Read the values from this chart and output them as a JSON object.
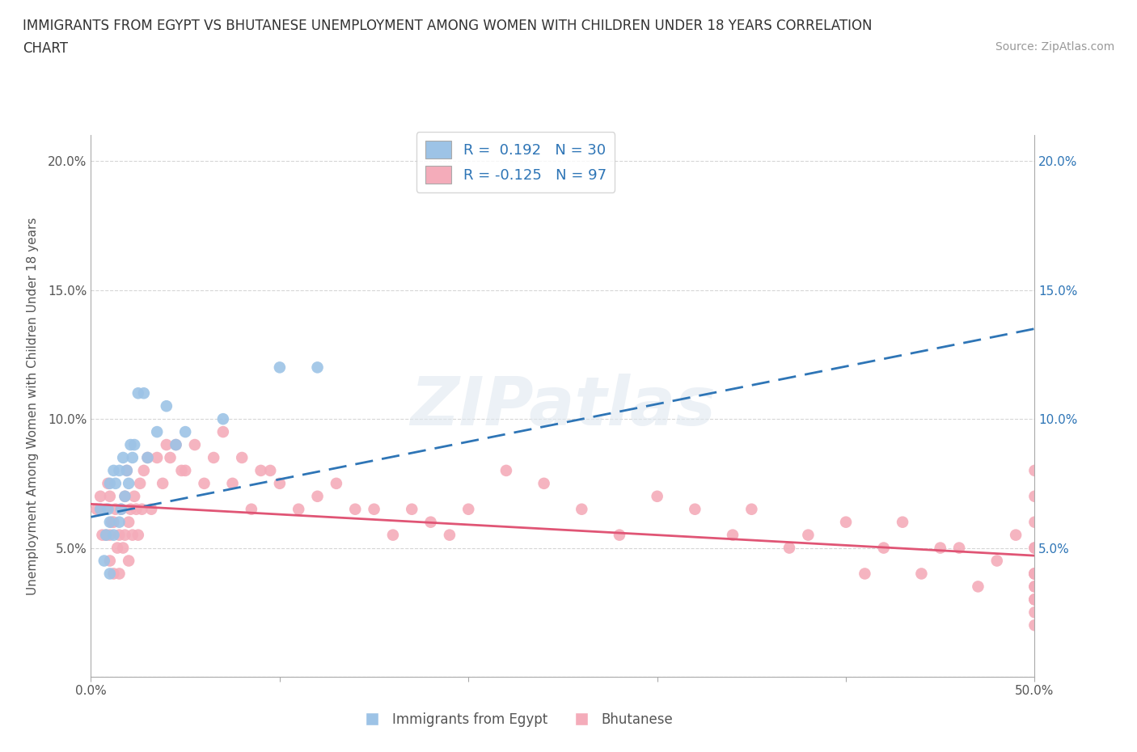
{
  "title_line1": "IMMIGRANTS FROM EGYPT VS BHUTANESE UNEMPLOYMENT AMONG WOMEN WITH CHILDREN UNDER 18 YEARS CORRELATION",
  "title_line2": "CHART",
  "source": "Source: ZipAtlas.com",
  "ylabel": "Unemployment Among Women with Children Under 18 years",
  "xlabel": "",
  "xlim": [
    0.0,
    0.5
  ],
  "ylim": [
    0.0,
    0.21
  ],
  "xticks": [
    0.0,
    0.1,
    0.2,
    0.3,
    0.4,
    0.5
  ],
  "xticklabels": [
    "0.0%",
    "",
    "",
    "",
    "",
    "50.0%"
  ],
  "yticks": [
    0.0,
    0.05,
    0.1,
    0.15,
    0.2
  ],
  "yticklabels": [
    "",
    "5.0%",
    "10.0%",
    "15.0%",
    "20.0%"
  ],
  "blue_color": "#9DC3E6",
  "pink_color": "#F4ACBA",
  "blue_line_color": "#2E75B6",
  "pink_line_color": "#E05575",
  "legend_r1": "R =  0.192   N = 30",
  "legend_r2": "R = -0.125   N = 97",
  "legend_label1": "Immigrants from Egypt",
  "legend_label2": "Bhutanese",
  "watermark": "ZIPatlas",
  "background_color": "#ffffff",
  "grid_color": "#cccccc",
  "blue_scatter_x": [
    0.005,
    0.007,
    0.008,
    0.009,
    0.01,
    0.01,
    0.01,
    0.012,
    0.012,
    0.013,
    0.015,
    0.015,
    0.016,
    0.017,
    0.018,
    0.019,
    0.02,
    0.021,
    0.022,
    0.023,
    0.025,
    0.028,
    0.03,
    0.035,
    0.04,
    0.045,
    0.05,
    0.07,
    0.1,
    0.12
  ],
  "blue_scatter_y": [
    0.065,
    0.045,
    0.055,
    0.065,
    0.04,
    0.06,
    0.075,
    0.055,
    0.08,
    0.075,
    0.06,
    0.08,
    0.065,
    0.085,
    0.07,
    0.08,
    0.075,
    0.09,
    0.085,
    0.09,
    0.11,
    0.11,
    0.085,
    0.095,
    0.105,
    0.09,
    0.095,
    0.1,
    0.12,
    0.12
  ],
  "pink_scatter_x": [
    0.003,
    0.005,
    0.006,
    0.008,
    0.008,
    0.009,
    0.01,
    0.01,
    0.01,
    0.011,
    0.012,
    0.012,
    0.013,
    0.014,
    0.015,
    0.015,
    0.016,
    0.017,
    0.018,
    0.018,
    0.019,
    0.02,
    0.02,
    0.021,
    0.022,
    0.023,
    0.024,
    0.025,
    0.026,
    0.027,
    0.028,
    0.03,
    0.032,
    0.035,
    0.038,
    0.04,
    0.042,
    0.045,
    0.048,
    0.05,
    0.055,
    0.06,
    0.065,
    0.07,
    0.075,
    0.08,
    0.085,
    0.09,
    0.095,
    0.1,
    0.11,
    0.12,
    0.13,
    0.14,
    0.15,
    0.16,
    0.17,
    0.18,
    0.19,
    0.2,
    0.22,
    0.24,
    0.26,
    0.28,
    0.3,
    0.32,
    0.34,
    0.35,
    0.37,
    0.38,
    0.4,
    0.41,
    0.42,
    0.43,
    0.44,
    0.45,
    0.46,
    0.47,
    0.48,
    0.49,
    0.5,
    0.5,
    0.5,
    0.5,
    0.5,
    0.5,
    0.5,
    0.5,
    0.5,
    0.5,
    0.5,
    0.5,
    0.5,
    0.5,
    0.5,
    0.5,
    0.5
  ],
  "pink_scatter_y": [
    0.065,
    0.07,
    0.055,
    0.055,
    0.065,
    0.075,
    0.045,
    0.055,
    0.07,
    0.06,
    0.04,
    0.06,
    0.065,
    0.05,
    0.04,
    0.055,
    0.065,
    0.05,
    0.055,
    0.07,
    0.08,
    0.045,
    0.06,
    0.065,
    0.055,
    0.07,
    0.065,
    0.055,
    0.075,
    0.065,
    0.08,
    0.085,
    0.065,
    0.085,
    0.075,
    0.09,
    0.085,
    0.09,
    0.08,
    0.08,
    0.09,
    0.075,
    0.085,
    0.095,
    0.075,
    0.085,
    0.065,
    0.08,
    0.08,
    0.075,
    0.065,
    0.07,
    0.075,
    0.065,
    0.065,
    0.055,
    0.065,
    0.06,
    0.055,
    0.065,
    0.08,
    0.075,
    0.065,
    0.055,
    0.07,
    0.065,
    0.055,
    0.065,
    0.05,
    0.055,
    0.06,
    0.04,
    0.05,
    0.06,
    0.04,
    0.05,
    0.05,
    0.035,
    0.045,
    0.055,
    0.02,
    0.03,
    0.04,
    0.06,
    0.07,
    0.08,
    0.035,
    0.04,
    0.05,
    0.025,
    0.03,
    0.04,
    0.035,
    0.04,
    0.05,
    0.03,
    0.04
  ],
  "blue_line_x": [
    0.0,
    0.5
  ],
  "blue_line_y": [
    0.062,
    0.135
  ],
  "pink_line_x": [
    0.0,
    0.5
  ],
  "pink_line_y": [
    0.067,
    0.047
  ]
}
